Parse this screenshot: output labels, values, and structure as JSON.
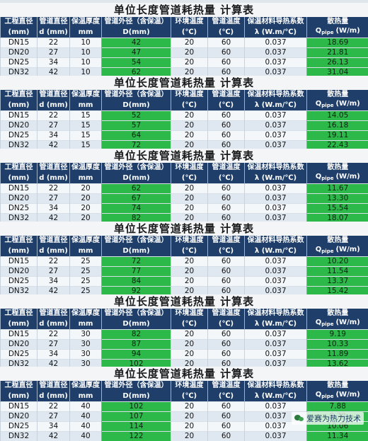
{
  "title": "单位长度管道耗热量  计算表",
  "headers": {
    "row1": [
      "工程直径",
      "管道直径",
      "保温厚度",
      "管道外径（含保温）",
      "环境温度",
      "管道温度",
      "保温材料导热系数",
      "散热量"
    ],
    "row2": [
      "(mm)",
      "d (mm)",
      "mm",
      "D(mm)",
      "(℃)",
      "(℃)",
      "λ (W.m/℃)",
      "(W/m)"
    ],
    "q_main": "Q",
    "q_sub": "pipe"
  },
  "tables": [
    {
      "rows": [
        [
          "DN15",
          "22",
          "10",
          "42",
          "20",
          "60",
          "0.037",
          "18.69"
        ],
        [
          "DN20",
          "27",
          "10",
          "47",
          "20",
          "60",
          "0.037",
          "21.81"
        ],
        [
          "DN25",
          "34",
          "10",
          "54",
          "20",
          "60",
          "0.037",
          "26.13"
        ],
        [
          "DN32",
          "42",
          "10",
          "62",
          "20",
          "60",
          "0.037",
          "31.04"
        ]
      ]
    },
    {
      "rows": [
        [
          "DN15",
          "22",
          "15",
          "52",
          "20",
          "60",
          "0.037",
          "14.05"
        ],
        [
          "DN20",
          "27",
          "15",
          "57",
          "20",
          "60",
          "0.037",
          "16.18"
        ],
        [
          "DN25",
          "34",
          "15",
          "64",
          "20",
          "60",
          "0.037",
          "19.11"
        ],
        [
          "DN32",
          "42",
          "15",
          "72",
          "20",
          "60",
          "0.037",
          "22.43"
        ]
      ]
    },
    {
      "rows": [
        [
          "DN15",
          "22",
          "20",
          "62",
          "20",
          "60",
          "0.037",
          "11.67"
        ],
        [
          "DN20",
          "27",
          "20",
          "67",
          "20",
          "60",
          "0.037",
          "13.30"
        ],
        [
          "DN25",
          "34",
          "20",
          "74",
          "20",
          "60",
          "0.037",
          "15.54"
        ],
        [
          "DN32",
          "42",
          "20",
          "82",
          "20",
          "60",
          "0.037",
          "18.07"
        ]
      ]
    },
    {
      "rows": [
        [
          "DN15",
          "22",
          "25",
          "72",
          "20",
          "60",
          "0.037",
          "10.20"
        ],
        [
          "DN20",
          "27",
          "25",
          "77",
          "20",
          "60",
          "0.037",
          "11.54"
        ],
        [
          "DN25",
          "34",
          "25",
          "84",
          "20",
          "60",
          "0.037",
          "13.37"
        ],
        [
          "DN32",
          "42",
          "25",
          "92",
          "20",
          "60",
          "0.037",
          "15.42"
        ]
      ]
    },
    {
      "rows": [
        [
          "DN15",
          "22",
          "30",
          "82",
          "20",
          "60",
          "0.037",
          "9.19"
        ],
        [
          "DN20",
          "27",
          "30",
          "87",
          "20",
          "60",
          "0.037",
          "10.33"
        ],
        [
          "DN25",
          "34",
          "30",
          "94",
          "20",
          "60",
          "0.037",
          "11.89"
        ],
        [
          "DN32",
          "42",
          "30",
          "102",
          "20",
          "60",
          "0.037",
          "13.62"
        ]
      ]
    },
    {
      "rows": [
        [
          "DN15",
          "22",
          "40",
          "102",
          "20",
          "60",
          "0.037",
          "7.88"
        ],
        [
          "DN20",
          "27",
          "40",
          "107",
          "20",
          "60",
          "0.037",
          "8.78"
        ],
        [
          "DN25",
          "34",
          "40",
          "114",
          "20",
          "60",
          "0.037",
          "10.06"
        ],
        [
          "DN32",
          "42",
          "40",
          "122",
          "20",
          "60",
          "0.037",
          "11.34"
        ]
      ]
    }
  ],
  "watermark": "爱赛为热力技术"
}
